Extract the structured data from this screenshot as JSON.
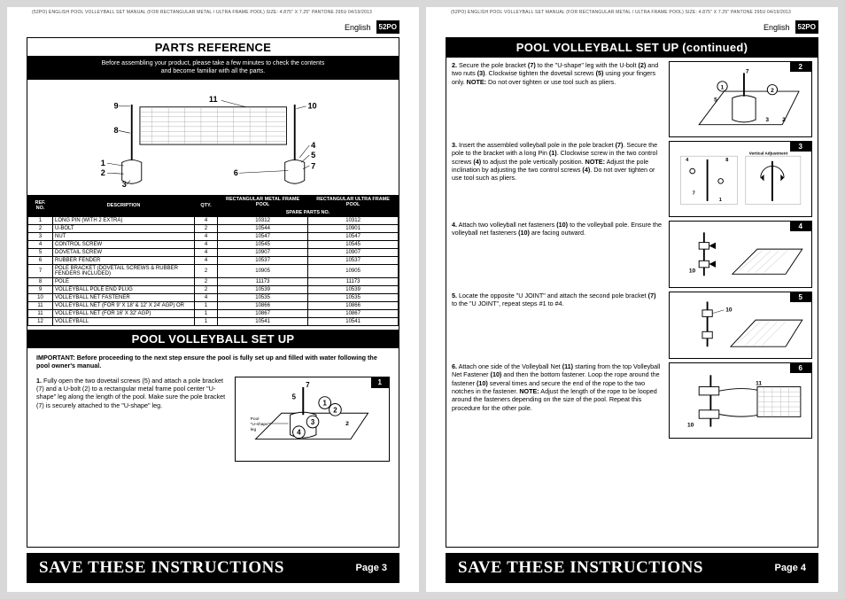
{
  "spec_header": "(52PO)  ENGLISH  POOL VOLLEYBALL SET MANUAL (FOR RECTANGULAR METAL / ULTRA FRAME POOL)  SIZE: 4.875\" X 7.25\"  PANTONE 295U  04/19/2013",
  "language": "English",
  "code": "52PO",
  "page3": {
    "title1": "PARTS REFERENCE",
    "intro": "Before assembling your product, please take a few minutes to check the  contents\nand become familiar with all the parts.",
    "diagram_labels": [
      "9",
      "11",
      "10",
      "8",
      "4",
      "5",
      "1",
      "2",
      "6",
      "7",
      "3"
    ],
    "table": {
      "headers": [
        "REF.\nNO.",
        "DESCRIPTION",
        "QTY.",
        "RECTANGULAR METAL FRAME POOL",
        "RECTANGULAR ULTRA FRAME POOL"
      ],
      "spares_label": "SPARE PARTS NO.",
      "rows": [
        [
          "1",
          "LONG PIN (WITH 2 EXTRA)",
          "4",
          "10312",
          "10312"
        ],
        [
          "2",
          "U-BOLT",
          "2",
          "10544",
          "10901"
        ],
        [
          "3",
          "NUT",
          "4",
          "10547",
          "10547"
        ],
        [
          "4",
          "CONTROL SCREW",
          "4",
          "10545",
          "10545"
        ],
        [
          "5",
          "DOVETAIL SCREW",
          "4",
          "10907",
          "10907"
        ],
        [
          "6",
          "RUBBER FENDER",
          "4",
          "10537",
          "10537"
        ],
        [
          "7",
          "POLE BRACKET (DOVETAIL SCREWS & RUBBER FENDERS INCLUDED)",
          "2",
          "10905",
          "10905"
        ],
        [
          "8",
          "POLE",
          "2",
          "11173",
          "11173"
        ],
        [
          "9",
          "VOLLEYBALL POLE END PLUG",
          "2",
          "10539",
          "10539"
        ],
        [
          "10",
          "VOLLEYBALL NET FASTENER",
          "4",
          "10535",
          "10535"
        ],
        [
          "11",
          "VOLLEYBALL NET (FOR 9' X 18' & 12' X 24' AGP) OR",
          "1",
          "10866",
          "10866"
        ],
        [
          "11",
          "VOLLEYBALL NET (FOR 16' X 32' AGP)",
          "1",
          "10867",
          "10867"
        ],
        [
          "12",
          "VOLLEYBALL",
          "1",
          "10541",
          "10541"
        ]
      ]
    },
    "title2": "POOL VOLLEYBALL SET UP",
    "important": "IMPORTANT: Before proceeding to the next step ensure the pool is fully set up and filled with water following the pool owner's manual.",
    "step1": "Fully open the two dovetail screws (5) and attach a pole bracket (7) and a U-bolt (2) to a rectangular metal frame pool center \"U-shape\" leg along the length of the pool. Make sure the pole bracket (7) is securely attached to the \"U-shape\" leg."
  },
  "page4": {
    "title": "POOL VOLLEYBALL SET UP (continued)",
    "steps": [
      {
        "n": "2.",
        "text": "Secure the pole bracket (7) to the \"U-shape\" leg with the U-bolt (2) and two nuts (3). Clockwise tighten the dovetail screws (5) using your fingers only. NOTE: Do not over tighten or use tool such as pliers."
      },
      {
        "n": "3.",
        "text": "Insert the assembled volleyball pole in the pole bracket (7). Secure the pole to the bracket with a long Pin (1). Clockwise screw in the two control screws (4) to adjust the pole vertically position. NOTE: Adjust the pole inclination by adjusting the two control screws (4). Do not over tighten or use tool such as pliers."
      },
      {
        "n": "4.",
        "text": "Attach two volleyball net fasteners (10) to the volleyball pole. Ensure the volleyball net fasteners (10) are facing outward."
      },
      {
        "n": "5.",
        "text": "Locate the opposite \"U JOINT\" and attach the second pole bracket (7) to the \"U JOINT\", repeat steps #1 to #4."
      },
      {
        "n": "6.",
        "text": "Attach one side of the Volleyball Net (11) starting from the top Volleyball Net Fastener (10) and then the bottom fastener. Loop the rope around the fastener (10) several times and secure the end of the rope to the two notches in the fastener. NOTE: Adjust the length of the rope to be looped around the fasteners depending on the size of the pool. Repeat this procedure for the other pole."
      }
    ],
    "fig3_label": "Vertical Adjustment"
  },
  "footer": {
    "save": "SAVE THESE INSTRUCTIONS",
    "p3": "Page 3",
    "p4": "Page 4"
  },
  "colors": {
    "bg": "#d8d8d8",
    "black": "#000",
    "white": "#fff"
  }
}
